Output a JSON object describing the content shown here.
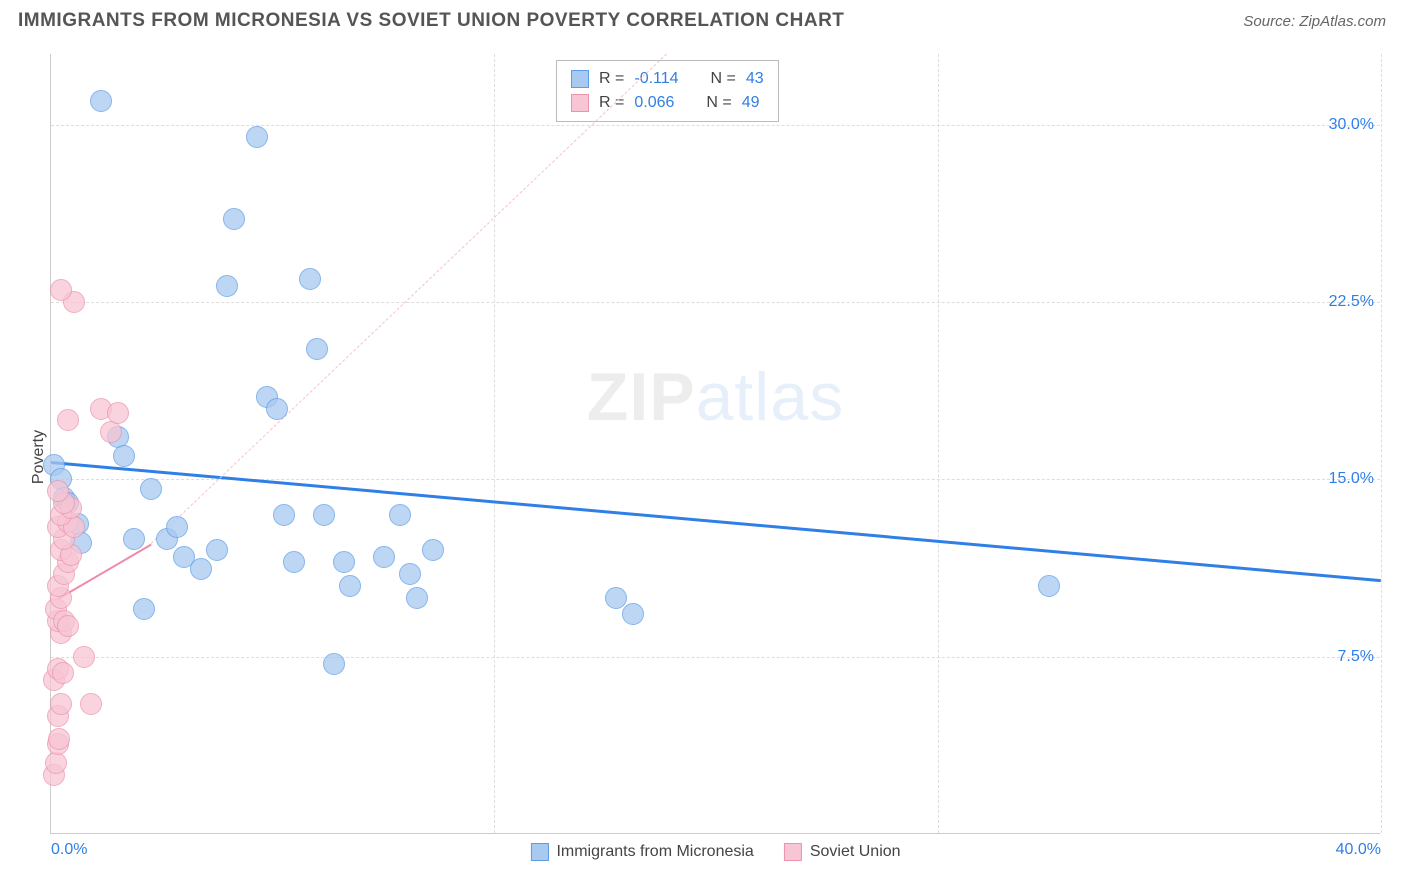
{
  "header": {
    "title": "IMMIGRANTS FROM MICRONESIA VS SOVIET UNION POVERTY CORRELATION CHART",
    "source_prefix": "Source: ",
    "source_name": "ZipAtlas.com"
  },
  "chart": {
    "type": "scatter",
    "ylabel": "Poverty",
    "xlim": [
      0,
      40
    ],
    "ylim": [
      0,
      33
    ],
    "yticks": [
      {
        "v": 7.5,
        "label": "7.5%"
      },
      {
        "v": 15.0,
        "label": "15.0%"
      },
      {
        "v": 22.5,
        "label": "22.5%"
      },
      {
        "v": 30.0,
        "label": "30.0%"
      }
    ],
    "xticks": [
      {
        "v": 0,
        "label": "0.0%",
        "cls": "left"
      },
      {
        "v": 40,
        "label": "40.0%",
        "cls": "right"
      }
    ],
    "x_gridlines": [
      13.33,
      26.67,
      40
    ],
    "grid_color": "#dddddd",
    "background_color": "#ffffff",
    "watermark": {
      "part1": "ZIP",
      "part2": "atlas"
    },
    "series": [
      {
        "name": "Immigrants from Micronesia",
        "color_fill": "#a8c9f0",
        "color_stroke": "#5e9de8",
        "marker_radius": 11,
        "R": "-0.114",
        "N": "43",
        "trend": {
          "x1": 0,
          "y1": 15.8,
          "x2": 40,
          "y2": 10.8,
          "style": "blue"
        },
        "points": [
          [
            0.1,
            15.6
          ],
          [
            0.3,
            15.0
          ],
          [
            0.4,
            14.2
          ],
          [
            0.5,
            14.0
          ],
          [
            0.8,
            13.1
          ],
          [
            0.9,
            12.3
          ],
          [
            1.5,
            31.0
          ],
          [
            2.0,
            16.8
          ],
          [
            2.2,
            16.0
          ],
          [
            2.5,
            12.5
          ],
          [
            2.8,
            9.5
          ],
          [
            3.0,
            14.6
          ],
          [
            3.5,
            12.5
          ],
          [
            3.8,
            13.0
          ],
          [
            4.0,
            11.7
          ],
          [
            4.5,
            11.2
          ],
          [
            5.0,
            12.0
          ],
          [
            5.3,
            23.2
          ],
          [
            5.5,
            26.0
          ],
          [
            6.2,
            29.5
          ],
          [
            6.5,
            18.5
          ],
          [
            6.8,
            18.0
          ],
          [
            7.0,
            13.5
          ],
          [
            7.3,
            11.5
          ],
          [
            7.8,
            23.5
          ],
          [
            8.0,
            20.5
          ],
          [
            8.2,
            13.5
          ],
          [
            8.5,
            7.2
          ],
          [
            8.8,
            11.5
          ],
          [
            9.0,
            10.5
          ],
          [
            10.0,
            11.7
          ],
          [
            10.5,
            13.5
          ],
          [
            10.8,
            11.0
          ],
          [
            11.0,
            10.0
          ],
          [
            11.5,
            12.0
          ],
          [
            17.0,
            10.0
          ],
          [
            17.5,
            9.3
          ],
          [
            30.0,
            10.5
          ]
        ]
      },
      {
        "name": "Soviet Union",
        "color_fill": "#f7c5d4",
        "color_stroke": "#ec93ad",
        "marker_radius": 11,
        "R": "0.066",
        "N": "49",
        "trend": {
          "x1": 0.2,
          "y1": 10.0,
          "x2": 3.0,
          "y2": 12.3,
          "style": "pink"
        },
        "trend_ext": {
          "x1": 3.0,
          "y1": 12.3,
          "x2": 18.5,
          "y2": 33.0,
          "style": "pink-dash"
        },
        "points": [
          [
            0.1,
            2.5
          ],
          [
            0.15,
            3.0
          ],
          [
            0.2,
            3.8
          ],
          [
            0.25,
            4.0
          ],
          [
            0.2,
            5.0
          ],
          [
            0.3,
            5.5
          ],
          [
            0.1,
            6.5
          ],
          [
            0.2,
            7.0
          ],
          [
            0.35,
            6.8
          ],
          [
            0.3,
            8.5
          ],
          [
            0.2,
            9.0
          ],
          [
            0.15,
            9.5
          ],
          [
            0.4,
            9.0
          ],
          [
            0.5,
            8.8
          ],
          [
            0.3,
            10.0
          ],
          [
            0.2,
            10.5
          ],
          [
            0.4,
            11.0
          ],
          [
            0.5,
            11.5
          ],
          [
            0.3,
            12.0
          ],
          [
            0.6,
            11.8
          ],
          [
            0.4,
            12.5
          ],
          [
            0.2,
            13.0
          ],
          [
            0.5,
            13.2
          ],
          [
            0.7,
            13.0
          ],
          [
            0.3,
            13.5
          ],
          [
            0.6,
            13.8
          ],
          [
            0.4,
            14.0
          ],
          [
            0.2,
            14.5
          ],
          [
            0.5,
            17.5
          ],
          [
            0.7,
            22.5
          ],
          [
            0.3,
            23.0
          ],
          [
            1.0,
            7.5
          ],
          [
            1.2,
            5.5
          ],
          [
            1.5,
            18.0
          ],
          [
            1.8,
            17.0
          ],
          [
            2.0,
            17.8
          ]
        ]
      }
    ],
    "legend_top": {
      "rows": [
        {
          "swatch": "blue",
          "r_label": "R =",
          "r_val": "-0.114",
          "n_label": "N =",
          "n_val": "43"
        },
        {
          "swatch": "pink",
          "r_label": "R =",
          "r_val": "0.066",
          "n_label": "N =",
          "n_val": "49"
        }
      ]
    },
    "legend_bottom": [
      {
        "swatch": "blue",
        "label": "Immigrants from Micronesia"
      },
      {
        "swatch": "pink",
        "label": "Soviet Union"
      }
    ]
  }
}
